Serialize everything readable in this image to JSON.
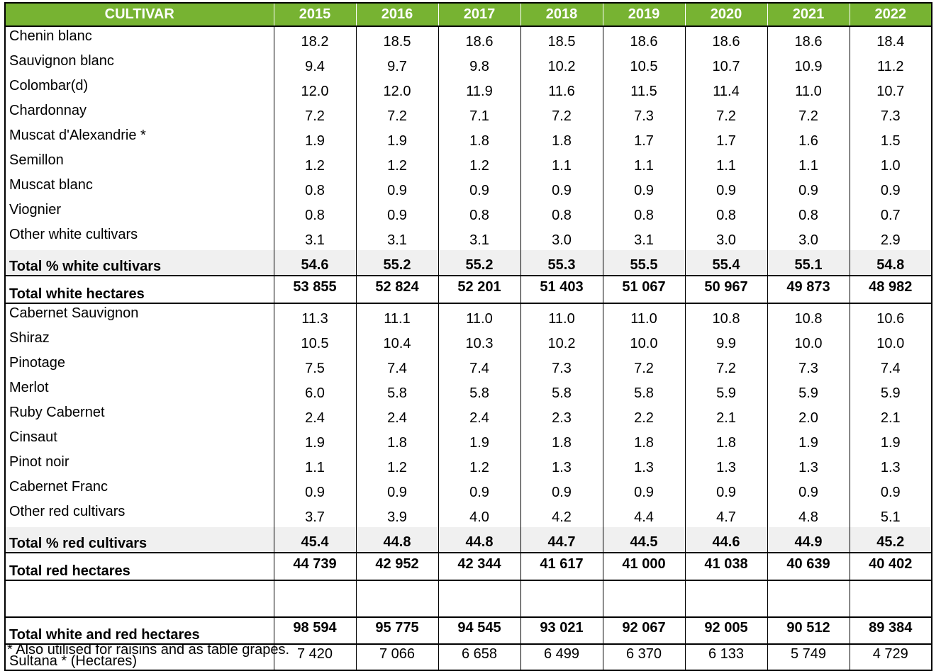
{
  "header": {
    "cultivar": "CULTIVAR",
    "years": [
      "2015",
      "2016",
      "2017",
      "2018",
      "2019",
      "2020",
      "2021",
      "2022"
    ]
  },
  "white_rows": [
    {
      "name": "Chenin blanc",
      "values": [
        "18.2",
        "18.5",
        "18.6",
        "18.5",
        "18.6",
        "18.6",
        "18.6",
        "18.4"
      ]
    },
    {
      "name": "Sauvignon blanc",
      "values": [
        "9.4",
        "9.7",
        "9.8",
        "10.2",
        "10.5",
        "10.7",
        "10.9",
        "11.2"
      ]
    },
    {
      "name": "Colombar(d)",
      "values": [
        "12.0",
        "12.0",
        "11.9",
        "11.6",
        "11.5",
        "11.4",
        "11.0",
        "10.7"
      ]
    },
    {
      "name": "Chardonnay",
      "values": [
        "7.2",
        "7.2",
        "7.1",
        "7.2",
        "7.3",
        "7.2",
        "7.2",
        "7.3"
      ]
    },
    {
      "name": "Muscat d'Alexandrie *",
      "values": [
        "1.9",
        "1.9",
        "1.8",
        "1.8",
        "1.7",
        "1.7",
        "1.6",
        "1.5"
      ]
    },
    {
      "name": "Semillon",
      "values": [
        "1.2",
        "1.2",
        "1.2",
        "1.1",
        "1.1",
        "1.1",
        "1.1",
        "1.0"
      ]
    },
    {
      "name": "Muscat blanc",
      "values": [
        "0.8",
        "0.9",
        "0.9",
        "0.9",
        "0.9",
        "0.9",
        "0.9",
        "0.9"
      ]
    },
    {
      "name": "Viognier",
      "values": [
        "0.8",
        "0.9",
        "0.8",
        "0.8",
        "0.8",
        "0.8",
        "0.8",
        "0.7"
      ]
    },
    {
      "name": "Other white cultivars",
      "values": [
        "3.1",
        "3.1",
        "3.1",
        "3.0",
        "3.1",
        "3.0",
        "3.0",
        "2.9"
      ]
    }
  ],
  "white_total_pct": {
    "name": "Total % white cultivars",
    "values": [
      "54.6",
      "55.2",
      "55.2",
      "55.3",
      "55.5",
      "55.4",
      "55.1",
      "54.8"
    ]
  },
  "white_total_hectares": {
    "name": "Total white hectares",
    "values": [
      "53 855",
      "52 824",
      "52 201",
      "51 403",
      "51 067",
      "50 967",
      "49 873",
      "48 982"
    ]
  },
  "red_rows": [
    {
      "name": "Cabernet Sauvignon",
      "values": [
        "11.3",
        "11.1",
        "11.0",
        "11.0",
        "11.0",
        "10.8",
        "10.8",
        "10.6"
      ]
    },
    {
      "name": "Shiraz",
      "values": [
        "10.5",
        "10.4",
        "10.3",
        "10.2",
        "10.0",
        "9.9",
        "10.0",
        "10.0"
      ]
    },
    {
      "name": "Pinotage",
      "values": [
        "7.5",
        "7.4",
        "7.4",
        "7.3",
        "7.2",
        "7.2",
        "7.3",
        "7.4"
      ]
    },
    {
      "name": "Merlot",
      "values": [
        "6.0",
        "5.8",
        "5.8",
        "5.8",
        "5.8",
        "5.9",
        "5.9",
        "5.9"
      ]
    },
    {
      "name": "Ruby Cabernet",
      "values": [
        "2.4",
        "2.4",
        "2.4",
        "2.3",
        "2.2",
        "2.1",
        "2.0",
        "2.1"
      ]
    },
    {
      "name": "Cinsaut",
      "values": [
        "1.9",
        "1.8",
        "1.9",
        "1.8",
        "1.8",
        "1.8",
        "1.9",
        "1.9"
      ]
    },
    {
      "name": "Pinot noir",
      "values": [
        "1.1",
        "1.2",
        "1.2",
        "1.3",
        "1.3",
        "1.3",
        "1.3",
        "1.3"
      ]
    },
    {
      "name": "Cabernet Franc",
      "values": [
        "0.9",
        "0.9",
        "0.9",
        "0.9",
        "0.9",
        "0.9",
        "0.9",
        "0.9"
      ]
    },
    {
      "name": "Other red cultivars",
      "values": [
        "3.7",
        "3.9",
        "4.0",
        "4.2",
        "4.4",
        "4.7",
        "4.8",
        "5.1"
      ]
    }
  ],
  "red_total_pct": {
    "name": "Total % red cultivars",
    "values": [
      "45.4",
      "44.8",
      "44.8",
      "44.7",
      "44.5",
      "44.6",
      "44.9",
      "45.2"
    ]
  },
  "red_total_hectares": {
    "name": "Total red hectares",
    "values": [
      "44 739",
      "42 952",
      "42 344",
      "41 617",
      "41 000",
      "41 038",
      "40 639",
      "40 402"
    ]
  },
  "grand_total_hectares": {
    "name": "Total white and red hectares",
    "values": [
      "98 594",
      "95 775",
      "94 545",
      "93 021",
      "92 067",
      "92 005",
      "90 512",
      "89 384"
    ]
  },
  "sultana": {
    "name": "Sultana * (Hectares)",
    "values": [
      "7 420",
      "7 066",
      "6 658",
      "6 499",
      "6 370",
      "6 133",
      "5 749",
      "4 729"
    ]
  },
  "footnote": "* Also utilised for raisins and as table grapes.",
  "colors": {
    "header_bg": "#77b332",
    "header_text": "#ffffff",
    "total_pct_bg": "#f0f0f0"
  }
}
